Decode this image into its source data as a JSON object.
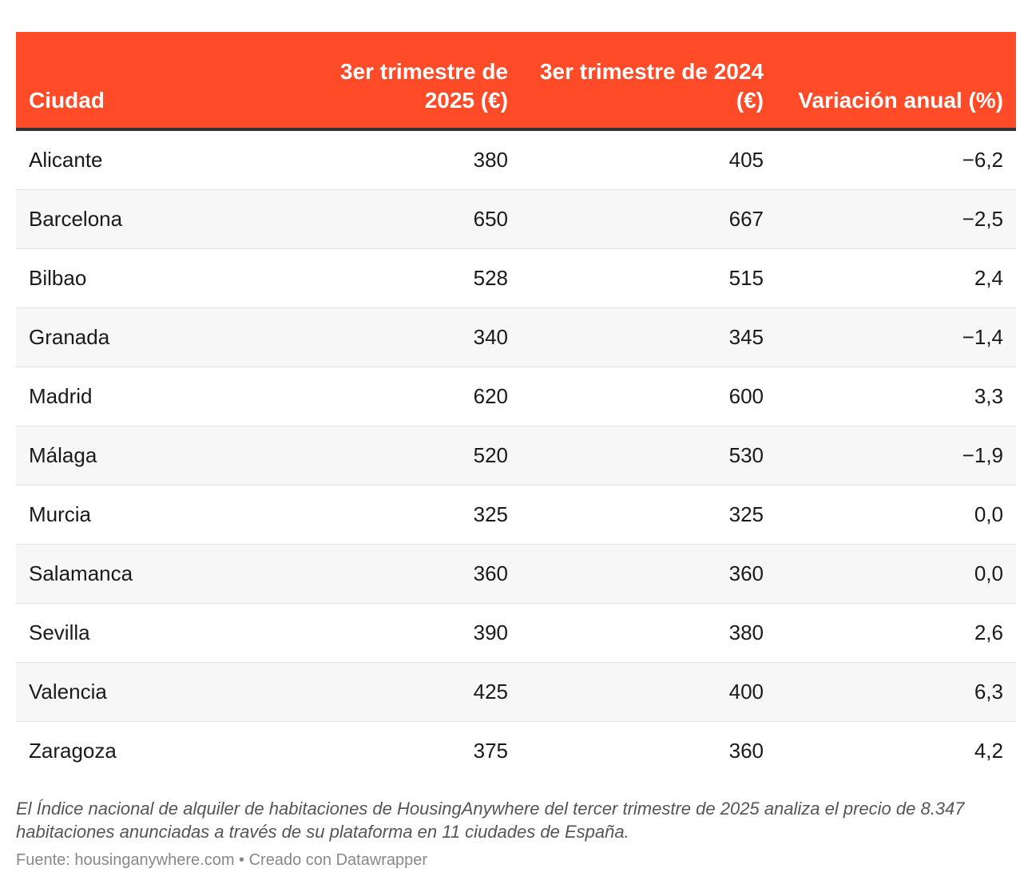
{
  "chart_data": {
    "type": "table",
    "columns": [
      "Ciudad",
      "3er trimestre de 2025 (€)",
      "3er trimestre de 2024 (€)",
      "Variación anual (%)"
    ],
    "rows": [
      [
        "Alicante",
        "380",
        "405",
        "−6,2"
      ],
      [
        "Barcelona",
        "650",
        "667",
        "−2,5"
      ],
      [
        "Bilbao",
        "528",
        "515",
        "2,4"
      ],
      [
        "Granada",
        "340",
        "345",
        "−1,4"
      ],
      [
        "Madrid",
        "620",
        "600",
        "3,3"
      ],
      [
        "Málaga",
        "520",
        "530",
        "−1,9"
      ],
      [
        "Murcia",
        "325",
        "325",
        "0,0"
      ],
      [
        "Salamanca",
        "360",
        "360",
        "0,0"
      ],
      [
        "Sevilla",
        "390",
        "380",
        "2,6"
      ],
      [
        "Valencia",
        "425",
        "400",
        "6,3"
      ],
      [
        "Zaragoza",
        "375",
        "360",
        "4,2"
      ]
    ]
  },
  "notes": "El Índice nacional de alquiler de habitaciones de HousingAnywhere del tercer trimestre de 2025 analiza el precio de 8.347 habitaciones anunciadas a través de su plataforma en 11 ciudades de España.",
  "source": "Fuente: housinganywhere.com • Creado con Datawrapper",
  "colors": {
    "header_bg": "#ff4b27",
    "header_text": "#ffffff",
    "stripe": "#f7f7f7"
  }
}
